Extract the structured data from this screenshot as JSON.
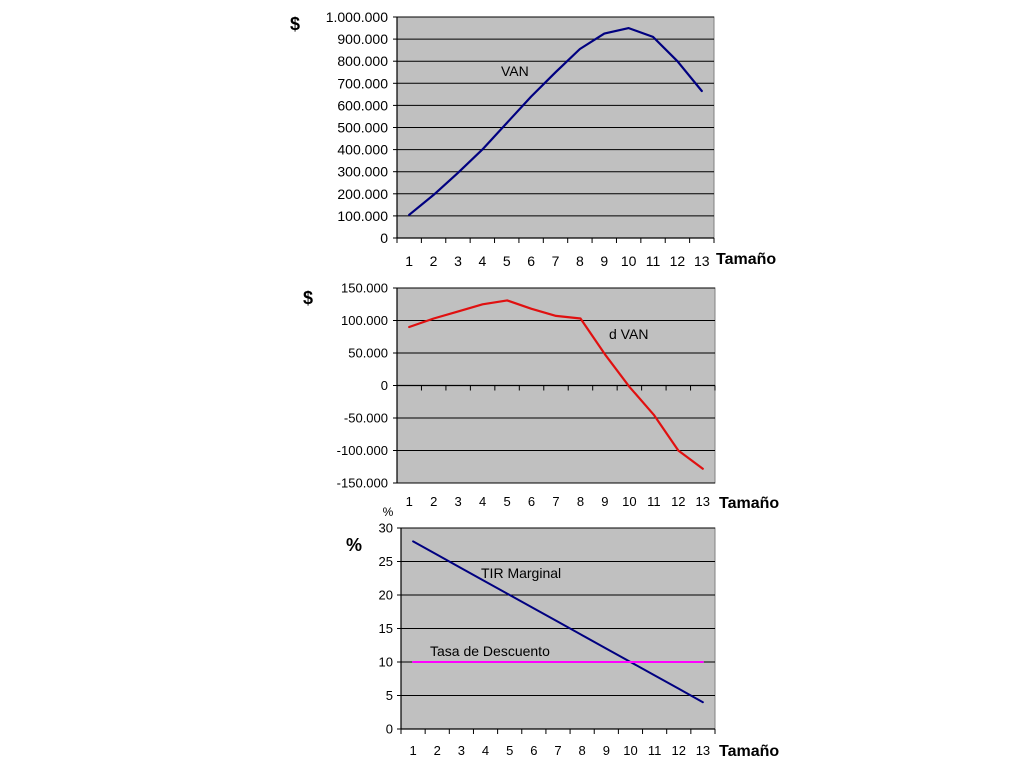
{
  "chart_data": [
    {
      "type": "line",
      "title": "",
      "ylabel": "$",
      "xlabel": "Tamaño",
      "categories": [
        "1",
        "2",
        "3",
        "4",
        "5",
        "6",
        "7",
        "8",
        "9",
        "10",
        "11",
        "12",
        "13"
      ],
      "ylim": [
        0,
        1000000
      ],
      "yticks": [
        "0",
        "100.000",
        "200.000",
        "300.000",
        "400.000",
        "500.000",
        "600.000",
        "700.000",
        "800.000",
        "900.000",
        "1.000.000"
      ],
      "grid": true,
      "series": [
        {
          "name": "VAN",
          "color": "#000080",
          "values": [
            105000,
            195000,
            295000,
            400000,
            520000,
            640000,
            750000,
            855000,
            925000,
            950000,
            910000,
            800000,
            665000
          ]
        }
      ]
    },
    {
      "type": "line",
      "title": "",
      "ylabel": "$",
      "xlabel": "Tamaño",
      "categories": [
        "1",
        "2",
        "3",
        "4",
        "5",
        "6",
        "7",
        "8",
        "9",
        "10",
        "11",
        "12",
        "13"
      ],
      "ylim": [
        -150000,
        150000
      ],
      "yticks": [
        "-150.000",
        "-100.000",
        "-50.000",
        "0",
        "50.000",
        "100.000",
        "150.000"
      ],
      "grid": true,
      "series": [
        {
          "name": "d VAN",
          "color": "#e01010",
          "values": [
            90000,
            103000,
            114000,
            125000,
            131000,
            118000,
            107000,
            103000,
            48000,
            -2000,
            -45000,
            -100000,
            -128000
          ]
        }
      ]
    },
    {
      "type": "line",
      "title": "",
      "ylabel": "%",
      "unit_label": "%",
      "xlabel": "Tamaño",
      "categories": [
        "1",
        "2",
        "3",
        "4",
        "5",
        "6",
        "7",
        "8",
        "9",
        "10",
        "11",
        "12",
        "13"
      ],
      "ylim": [
        0,
        30
      ],
      "yticks": [
        "0",
        "5",
        "10",
        "15",
        "20",
        "25",
        "30"
      ],
      "grid": true,
      "series": [
        {
          "name": "TIR Marginal",
          "color": "#000080",
          "values": [
            28,
            26,
            24,
            22,
            20,
            18,
            16,
            14,
            12,
            10,
            8,
            6,
            4
          ]
        },
        {
          "name": "Tasa de Descuento",
          "color": "#ff00ff",
          "values": [
            10,
            10,
            10,
            10,
            10,
            10,
            10,
            10,
            10,
            10,
            10,
            10,
            10
          ]
        }
      ]
    }
  ]
}
